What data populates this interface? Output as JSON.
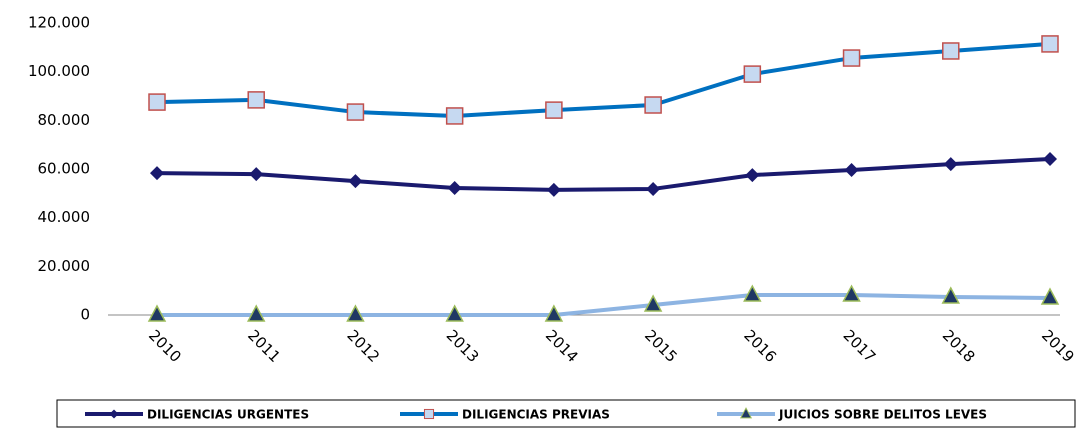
{
  "chart_data": {
    "type": "line",
    "categories": [
      "2010",
      "2011",
      "2012",
      "2013",
      "2014",
      "2015",
      "2016",
      "2017",
      "2018",
      "2019"
    ],
    "series": [
      {
        "name": "DILIGENCIAS URGENTES",
        "color": "#1a1a6e",
        "marker": "diamond",
        "values": [
          58300,
          57900,
          55000,
          52200,
          51400,
          51800,
          57500,
          59600,
          62000,
          64100
        ]
      },
      {
        "name": "DILIGENCIAS PREVIAS",
        "color": "#0070c0",
        "marker": "square",
        "values": [
          87500,
          88400,
          83400,
          81800,
          84200,
          86300,
          99000,
          105600,
          108500,
          111400
        ]
      },
      {
        "name": "JUICIOS SOBRE DELITOS LEVES",
        "color": "#8db4e2",
        "marker": "triangle",
        "values": [
          0,
          0,
          0,
          0,
          0,
          4100,
          8200,
          8200,
          7400,
          7000
        ]
      }
    ],
    "ylim": [
      0,
      120000
    ],
    "yticks": [
      0,
      {
        "value": 20000,
        "label": "20.000"
      },
      {
        "value": 40000,
        "label": "40.000"
      },
      {
        "value": 60000,
        "label": "60.000"
      },
      {
        "value": 80000,
        "label": "80.000"
      },
      {
        "value": 100000,
        "label": "100.000"
      },
      {
        "value": 120000,
        "label": "120.000"
      }
    ],
    "grid": false,
    "legend": "bottom"
  }
}
